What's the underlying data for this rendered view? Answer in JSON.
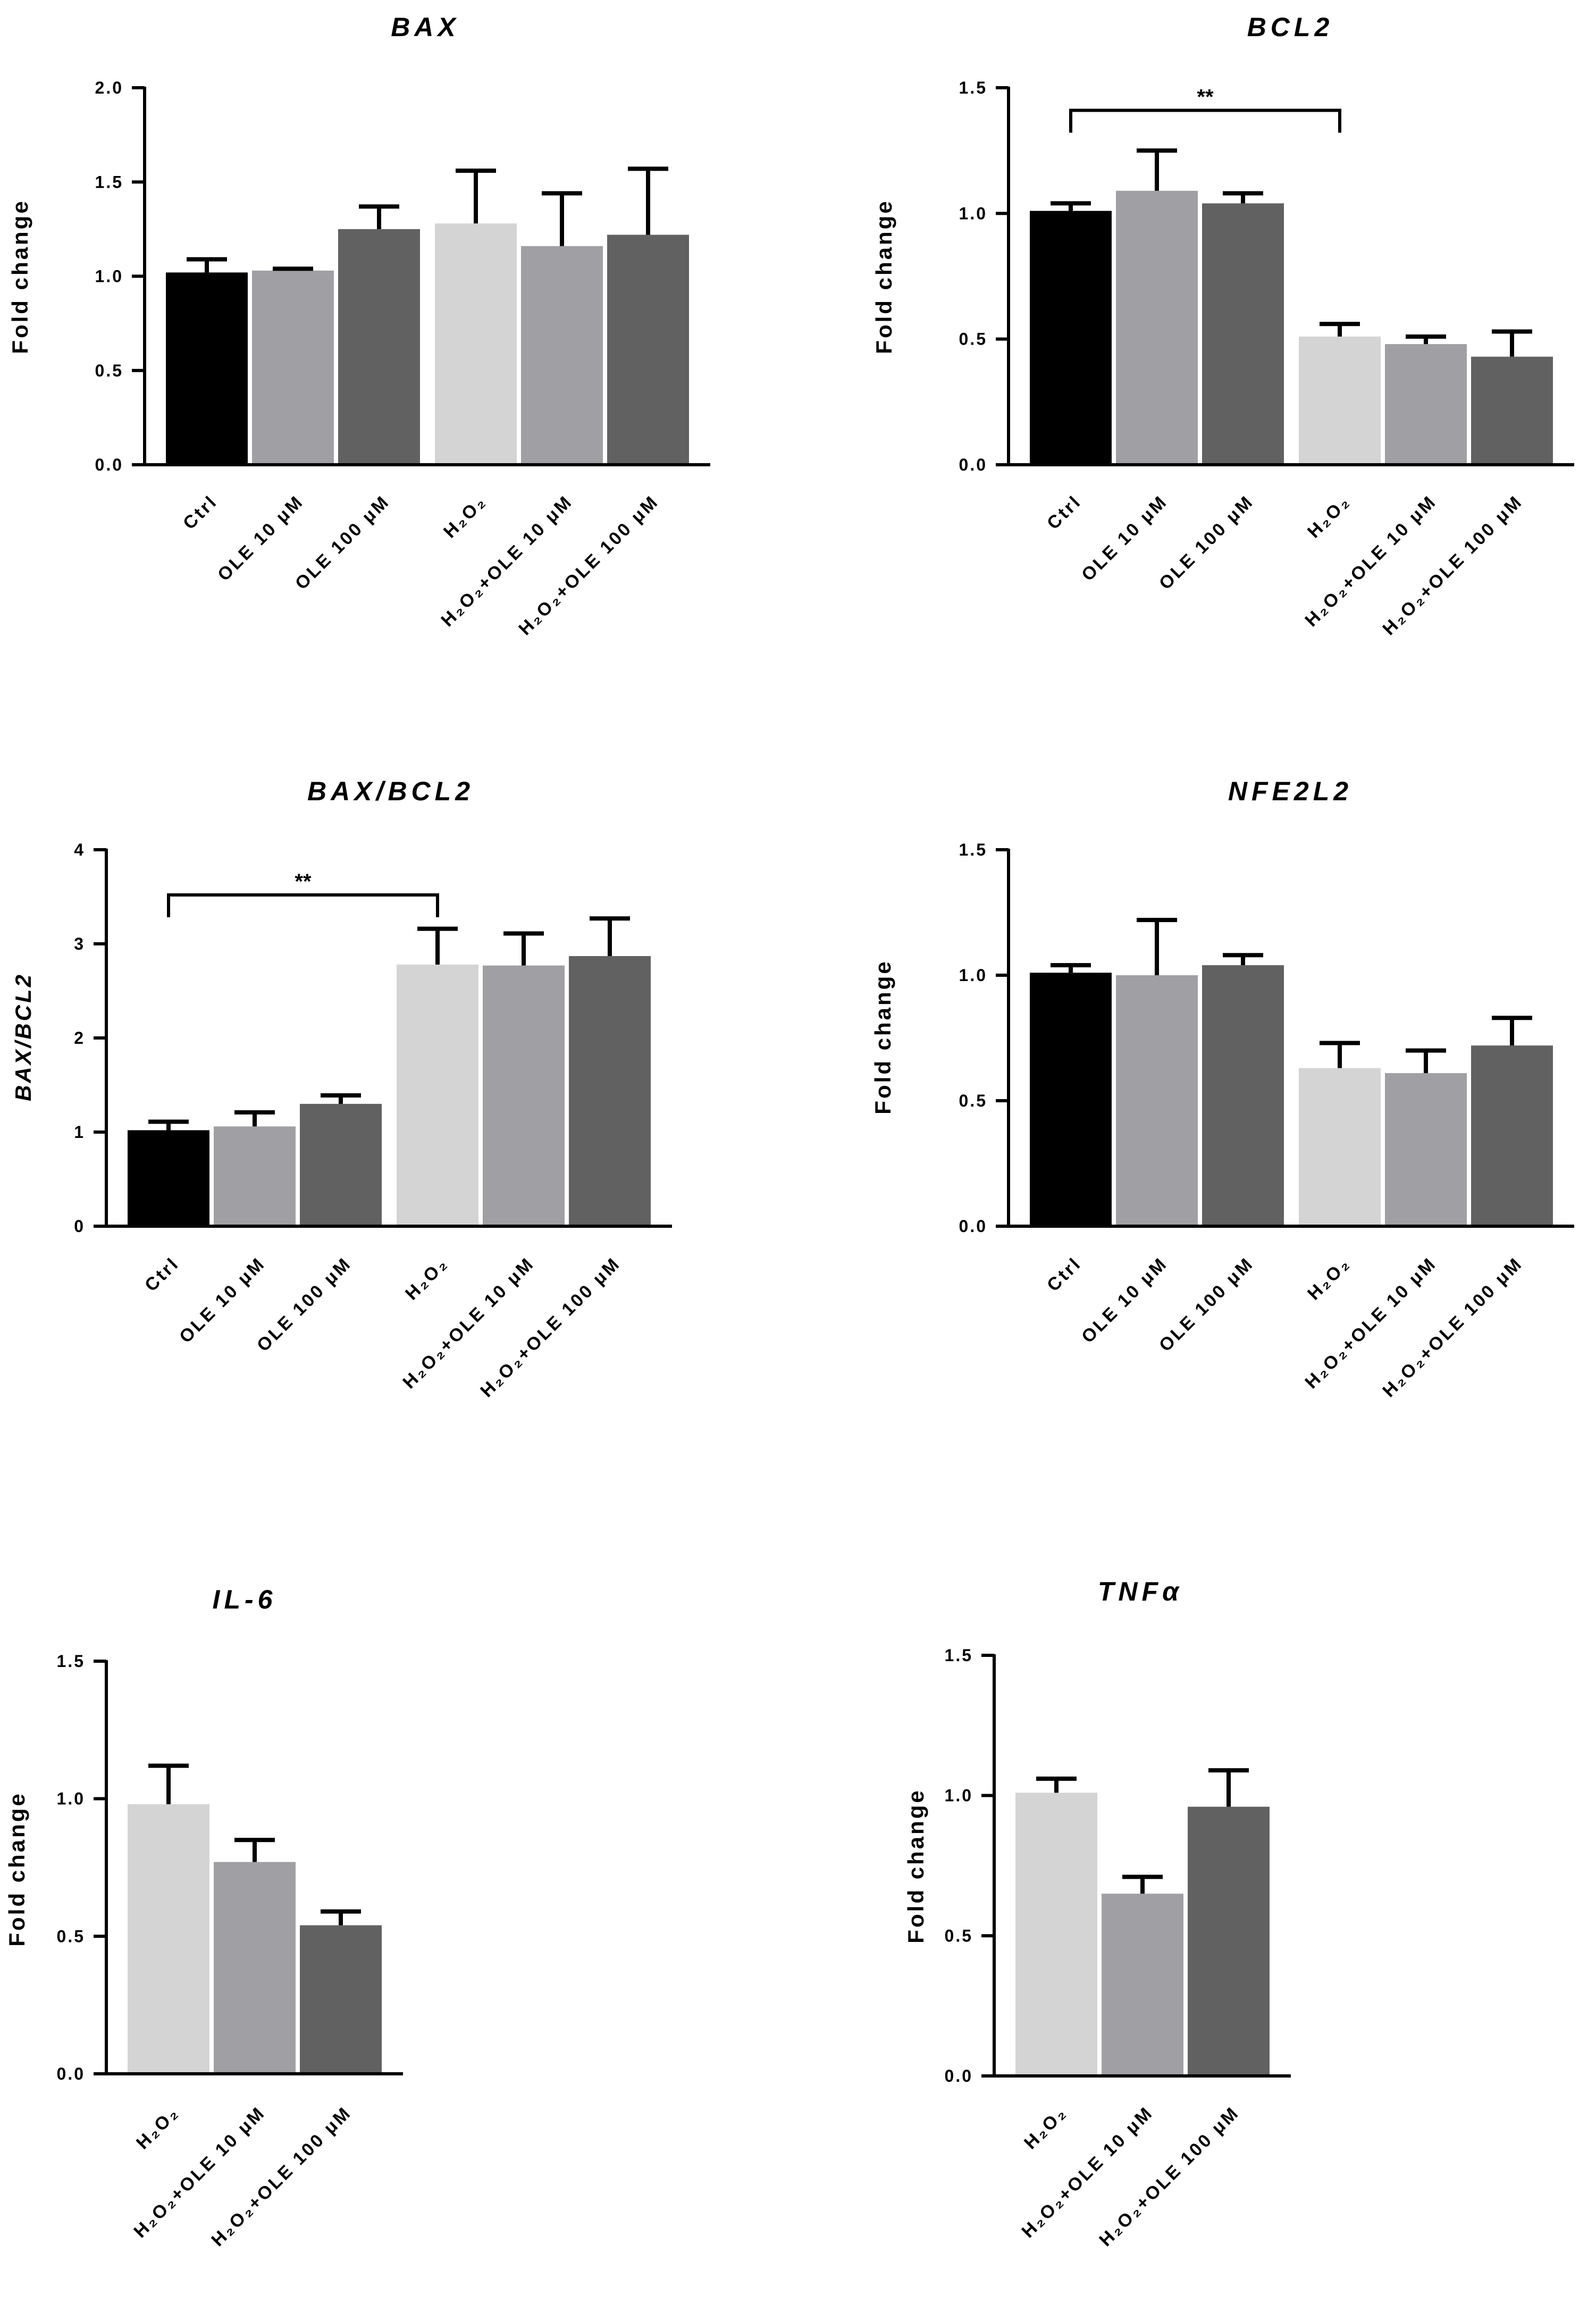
{
  "chart_data": [
    {
      "type": "bar",
      "title": "BAX",
      "ylabel": "Fold change",
      "ylabel_italic": false,
      "ylim": [
        0,
        2.0
      ],
      "yticks": [
        0,
        0.5,
        1.0,
        1.5,
        2.0
      ],
      "ytick_labels": [
        "0.0",
        "0.5",
        "1.0",
        "1.5",
        "2.0"
      ],
      "categories": [
        "Ctrl",
        "OLE 10 μM",
        "OLE 100 μM",
        "H₂O₂",
        "H₂O₂+OLE 10 μM",
        "H₂O₂+OLE 100 μM"
      ],
      "values": [
        1.02,
        1.03,
        1.25,
        1.28,
        1.16,
        1.22
      ],
      "errors": [
        0.07,
        0.01,
        0.12,
        0.28,
        0.28,
        0.35
      ],
      "colors": [
        "#000000",
        "#a0a0a4",
        "#616161",
        "#d4d4d4",
        "#a0a0a4",
        "#616161"
      ],
      "groups": [
        3,
        3
      ],
      "significance": null
    },
    {
      "type": "bar",
      "title": "BCL2",
      "ylabel": "Fold change",
      "ylabel_italic": false,
      "ylim": [
        0,
        1.5
      ],
      "yticks": [
        0,
        0.5,
        1.0,
        1.5
      ],
      "ytick_labels": [
        "0.0",
        "0.5",
        "1.0",
        "1.5"
      ],
      "categories": [
        "Ctrl",
        "OLE 10 μM",
        "OLE 100 μM",
        "H₂O₂",
        "H₂O₂+OLE 10 μM",
        "H₂O₂+OLE 100 μM"
      ],
      "values": [
        1.01,
        1.09,
        1.04,
        0.51,
        0.48,
        0.43
      ],
      "errors": [
        0.03,
        0.16,
        0.04,
        0.05,
        0.03,
        0.1
      ],
      "colors": [
        "#000000",
        "#a0a0a4",
        "#616161",
        "#d4d4d4",
        "#a0a0a4",
        "#616161"
      ],
      "groups": [
        3,
        3
      ],
      "significance": {
        "from": 0,
        "to": 3,
        "label": "**",
        "y": 1.41
      }
    },
    {
      "type": "bar",
      "title": "BAX/BCL2",
      "ylabel": "BAX/BCL2",
      "ylabel_italic": true,
      "ylim": [
        0,
        4
      ],
      "yticks": [
        0,
        1,
        2,
        3,
        4
      ],
      "ytick_labels": [
        "0",
        "1",
        "2",
        "3",
        "4"
      ],
      "categories": [
        "Ctrl",
        "OLE 10 μM",
        "OLE 100 μM",
        "H₂O₂",
        "H₂O₂+OLE 10 μM",
        "H₂O₂+OLE 100 μM"
      ],
      "values": [
        1.02,
        1.06,
        1.3,
        2.78,
        2.77,
        2.87
      ],
      "errors": [
        0.09,
        0.15,
        0.09,
        0.38,
        0.34,
        0.4
      ],
      "colors": [
        "#000000",
        "#a0a0a4",
        "#616161",
        "#d4d4d4",
        "#a0a0a4",
        "#616161"
      ],
      "groups": [
        3,
        3
      ],
      "significance": {
        "from": 0,
        "to": 3,
        "label": "**",
        "y": 3.52
      }
    },
    {
      "type": "bar",
      "title": "NFE2L2",
      "ylabel": "Fold change",
      "ylabel_italic": false,
      "ylim": [
        0,
        1.5
      ],
      "yticks": [
        0,
        0.5,
        1.0,
        1.5
      ],
      "ytick_labels": [
        "0.0",
        "0.5",
        "1.0",
        "1.5"
      ],
      "categories": [
        "Ctrl",
        "OLE 10 μM",
        "OLE 100 μM",
        "H₂O₂",
        "H₂O₂+OLE 10 μM",
        "H₂O₂+OLE 100 μM"
      ],
      "values": [
        1.01,
        1.0,
        1.04,
        0.63,
        0.61,
        0.72
      ],
      "errors": [
        0.03,
        0.22,
        0.04,
        0.1,
        0.09,
        0.11
      ],
      "colors": [
        "#000000",
        "#a0a0a4",
        "#616161",
        "#d4d4d4",
        "#a0a0a4",
        "#616161"
      ],
      "groups": [
        3,
        3
      ],
      "significance": null
    },
    {
      "type": "bar",
      "title": "IL-6",
      "ylabel": "Fold change",
      "ylabel_italic": false,
      "ylim": [
        0,
        1.5
      ],
      "yticks": [
        0,
        0.5,
        1.0,
        1.5
      ],
      "ytick_labels": [
        "0.0",
        "0.5",
        "1.0",
        "1.5"
      ],
      "categories": [
        "H₂O₂",
        "H₂O₂+OLE 10 μM",
        "H₂O₂+OLE 100 μM"
      ],
      "values": [
        0.98,
        0.77,
        0.54
      ],
      "errors": [
        0.14,
        0.08,
        0.05
      ],
      "colors": [
        "#d4d4d4",
        "#a0a0a4",
        "#616161"
      ],
      "groups": [
        3
      ],
      "significance": null
    },
    {
      "type": "bar",
      "title": "TNFα",
      "ylabel": "Fold change",
      "ylabel_italic": false,
      "ylim": [
        0,
        1.5
      ],
      "yticks": [
        0,
        0.5,
        1.0,
        1.5
      ],
      "ytick_labels": [
        "0.0",
        "0.5",
        "1.0",
        "1.5"
      ],
      "categories": [
        "H₂O₂",
        "H₂O₂+OLE 10 μM",
        "H₂O₂+OLE 100 μM"
      ],
      "values": [
        1.01,
        0.65,
        0.96
      ],
      "errors": [
        0.05,
        0.06,
        0.13
      ],
      "colors": [
        "#d4d4d4",
        "#a0a0a4",
        "#616161"
      ],
      "groups": [
        3
      ],
      "significance": null
    }
  ]
}
